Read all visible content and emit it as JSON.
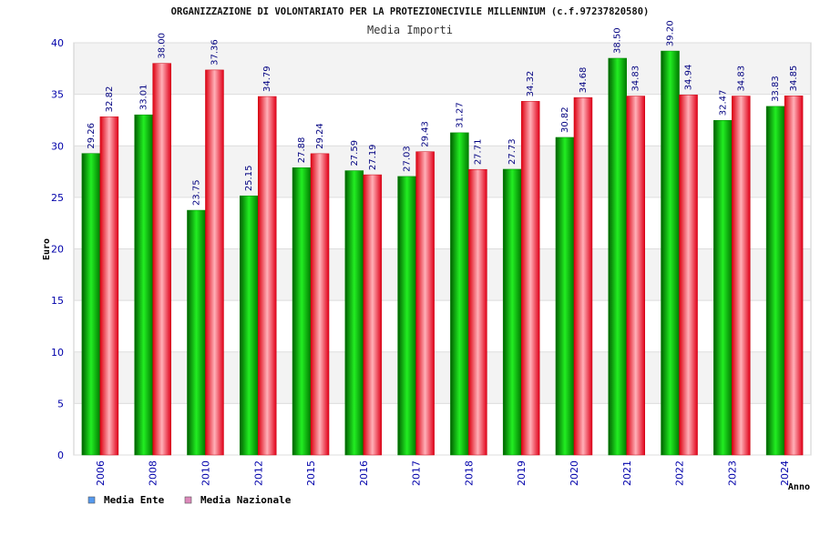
{
  "chart_data": {
    "type": "bar",
    "title": "ORGANIZZAZIONE DI VOLONTARIATO PER LA PROTEZIONECIVILE MILLENNIUM (c.f.97237820580)",
    "subtitle": "Media Importi",
    "xlabel": "Anno",
    "ylabel": "Euro",
    "ylim": [
      0,
      40
    ],
    "yticks": [
      "0",
      "5",
      "10",
      "15",
      "20",
      "25",
      "30",
      "35",
      "40"
    ],
    "grid": true,
    "legend_position": "bottom-left",
    "categories": [
      "2006",
      "2008",
      "2010",
      "2012",
      "2015",
      "2016",
      "2017",
      "2018",
      "2019",
      "2020",
      "2021",
      "2022",
      "2023",
      "2024"
    ],
    "series": [
      {
        "name": "Media Ente",
        "color": "#00c000",
        "legend_color": "#5599ee",
        "values": [
          29.26,
          33.01,
          23.75,
          25.15,
          27.88,
          27.59,
          27.03,
          31.27,
          27.73,
          30.82,
          38.5,
          39.2,
          32.47,
          33.83
        ],
        "labels": [
          "29.26",
          "33.01",
          "23.75",
          "25.15",
          "27.88",
          "27.59",
          "27.03",
          "31.27",
          "27.73",
          "30.82",
          "38.50",
          "39.20",
          "32.47",
          "33.83"
        ]
      },
      {
        "name": "Media Nazionale",
        "color": "#ee1122",
        "legend_color": "#dd88bb",
        "values": [
          32.82,
          38.0,
          37.36,
          34.79,
          29.24,
          27.19,
          29.43,
          27.71,
          34.32,
          34.68,
          34.83,
          34.94,
          34.83,
          34.85
        ],
        "labels": [
          "32.82",
          "38.00",
          "37.36",
          "34.79",
          "29.24",
          "27.19",
          "29.43",
          "27.71",
          "34.32",
          "34.68",
          "34.83",
          "34.94",
          "34.83",
          "34.85"
        ]
      }
    ]
  }
}
